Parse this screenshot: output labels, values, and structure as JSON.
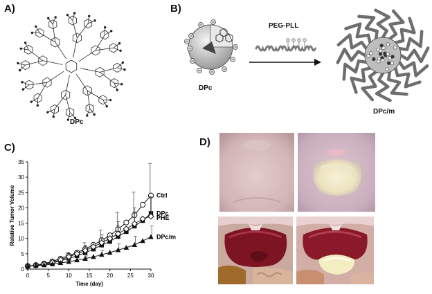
{
  "panels": {
    "a": {
      "label": "A)",
      "caption": "DPc"
    },
    "b": {
      "label": "B)",
      "left_caption": "DPc",
      "reagent": "PEG-PLL",
      "right_caption": "DPc/m"
    },
    "c": {
      "label": "C)"
    },
    "d": {
      "label": "D)"
    }
  },
  "colors": {
    "ink": "#222222",
    "polymer": "#7a7a7a",
    "skin": "#d9c2c3",
    "tissue": "#8b1f2a"
  },
  "chart_data": {
    "type": "line",
    "xlabel": "Time (day)",
    "ylabel": "Relative Tumor Volume",
    "xlim": [
      0,
      30
    ],
    "ylim": [
      0,
      35
    ],
    "xticks": [
      0,
      5,
      10,
      15,
      20,
      25,
      30
    ],
    "yticks": [
      0,
      5,
      10,
      15,
      20,
      25,
      30,
      35
    ],
    "x": [
      0,
      2,
      4,
      6,
      8,
      10,
      12,
      14,
      16,
      18,
      20,
      22,
      24,
      26,
      28,
      30
    ],
    "series": [
      {
        "name": "Ctrl",
        "marker": "open-circle",
        "values": [
          1.0,
          1.3,
          1.8,
          2.5,
          3.4,
          4.4,
          5.4,
          6.6,
          7.9,
          9.4,
          11.0,
          13.0,
          15.2,
          17.6,
          21.0,
          24.0
        ],
        "errors": [
          0.2,
          0.3,
          0.4,
          0.6,
          0.8,
          1.1,
          1.5,
          2.0,
          2.6,
          3.3,
          4.3,
          5.5,
          6.5,
          7.5,
          8.5,
          10.5
        ]
      },
      {
        "name": "DPc",
        "marker": "filled-square",
        "values": [
          1.0,
          1.2,
          1.5,
          2.0,
          2.7,
          3.5,
          4.3,
          5.3,
          6.5,
          7.8,
          9.0,
          10.6,
          12.2,
          14.0,
          15.8,
          18.2
        ],
        "errors": [
          0.2,
          0.3,
          0.4,
          0.5,
          0.7,
          0.9,
          1.2,
          1.6,
          2.0,
          2.5,
          3.0,
          3.6,
          4.2,
          4.6,
          5.0,
          5.5
        ]
      },
      {
        "name": "PHE",
        "marker": "open-diamond",
        "values": [
          1.0,
          1.25,
          1.6,
          2.2,
          3.0,
          4.0,
          5.0,
          6.1,
          7.3,
          8.6,
          10.0,
          11.5,
          13.1,
          14.8,
          16.4,
          17.2
        ],
        "errors": [
          0.2,
          0.3,
          0.4,
          0.6,
          0.8,
          1.0,
          1.3,
          1.7,
          2.2,
          2.7,
          3.3,
          4.0,
          4.6,
          5.2,
          5.8,
          6.2
        ]
      },
      {
        "name": "DPc/m",
        "marker": "filled-triangle",
        "values": [
          1.0,
          1.1,
          1.3,
          1.6,
          2.0,
          2.4,
          2.9,
          3.4,
          4.0,
          4.7,
          5.4,
          6.2,
          7.0,
          7.9,
          9.2,
          10.5
        ],
        "errors": [
          0.1,
          0.2,
          0.3,
          0.4,
          0.5,
          0.6,
          0.7,
          0.9,
          1.1,
          1.4,
          1.7,
          2.0,
          2.4,
          2.8,
          3.2,
          3.6
        ]
      }
    ]
  }
}
